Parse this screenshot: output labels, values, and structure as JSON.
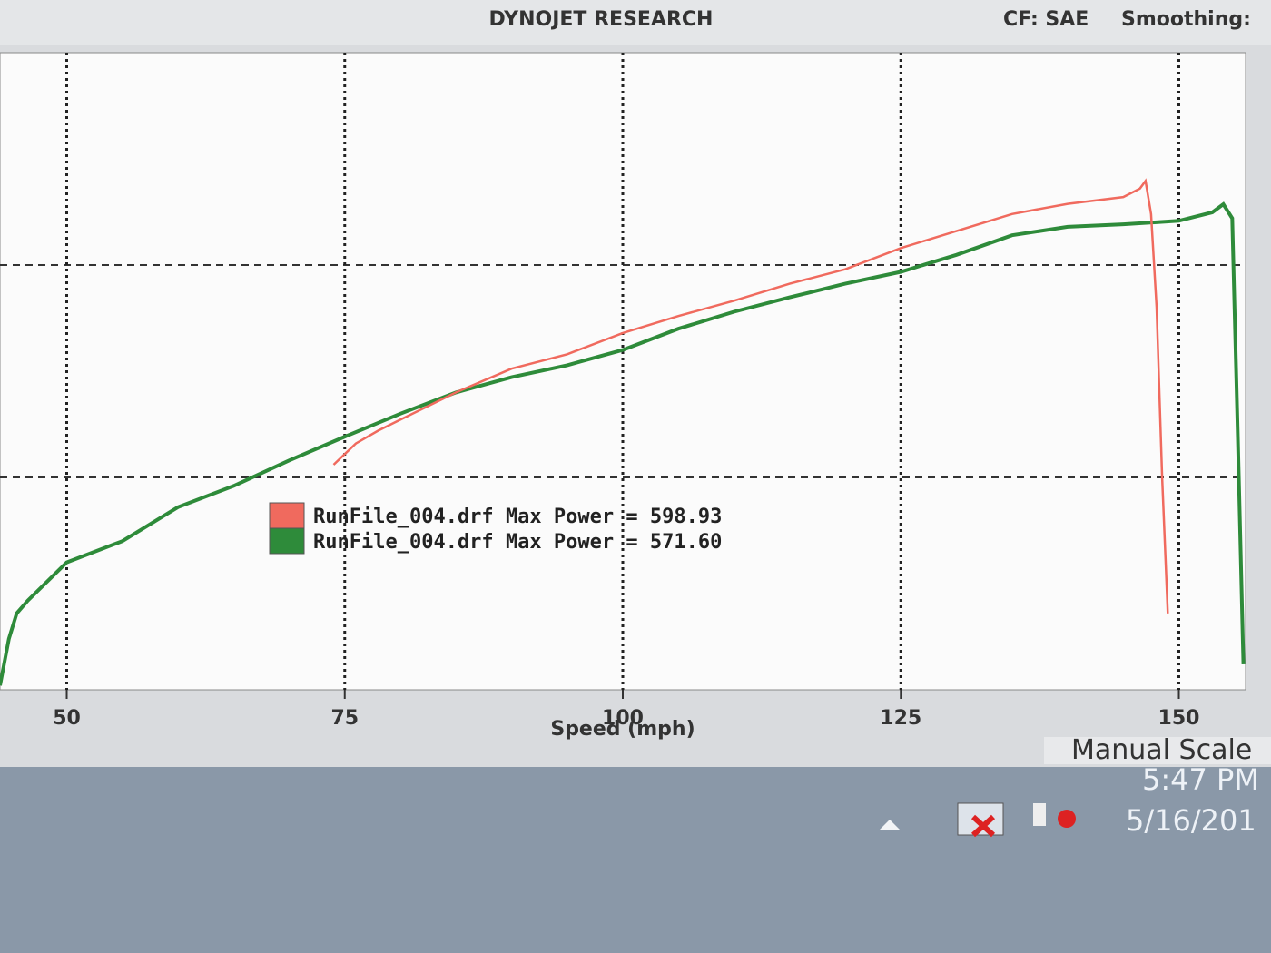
{
  "header": {
    "title": "DYNOJET RESEARCH",
    "cf": "CF: SAE",
    "smoothing": "Smoothing:"
  },
  "chart_data": {
    "type": "line",
    "xlabel": "Speed (mph)",
    "xlim": [
      44,
      156
    ],
    "xticks": [
      50,
      75,
      100,
      125,
      150
    ],
    "ylim": [
      0,
      750
    ],
    "yticks": [
      250,
      500
    ],
    "grid": true,
    "legend_text": "Max Power =",
    "series": [
      {
        "name": "RunFile_004.drf",
        "color": "#f06a5e",
        "max_power": 598.93,
        "max_power_label": "598.93",
        "x": [
          74,
          76,
          78,
          80,
          85,
          90,
          95,
          100,
          105,
          110,
          115,
          120,
          125,
          130,
          135,
          140,
          145,
          146.5,
          147,
          147.5,
          148,
          148.5,
          149
        ],
        "values": [
          265,
          290,
          305,
          318,
          350,
          378,
          395,
          420,
          440,
          458,
          478,
          495,
          520,
          540,
          560,
          572,
          580,
          590,
          598.93,
          560,
          450,
          250,
          90
        ]
      },
      {
        "name": "RunFile_004.drf",
        "color": "#2e8b3a",
        "max_power": 571.6,
        "max_power_label": "571.60",
        "x": [
          44,
          44.8,
          45.5,
          46.5,
          50,
          55,
          60,
          65,
          70,
          75,
          80,
          85,
          90,
          95,
          100,
          105,
          110,
          115,
          120,
          125,
          130,
          135,
          140,
          145,
          150,
          153,
          154,
          154.8,
          155.3,
          155.8
        ],
        "values": [
          5,
          60,
          90,
          105,
          150,
          175,
          215,
          240,
          270,
          298,
          325,
          350,
          368,
          382,
          400,
          425,
          445,
          462,
          478,
          492,
          512,
          535,
          545,
          548,
          552,
          562,
          571.6,
          555,
          300,
          30
        ]
      }
    ]
  },
  "status": {
    "scale": "Manual Scale",
    "time": "5:47 PM",
    "date": "5/16/201"
  }
}
